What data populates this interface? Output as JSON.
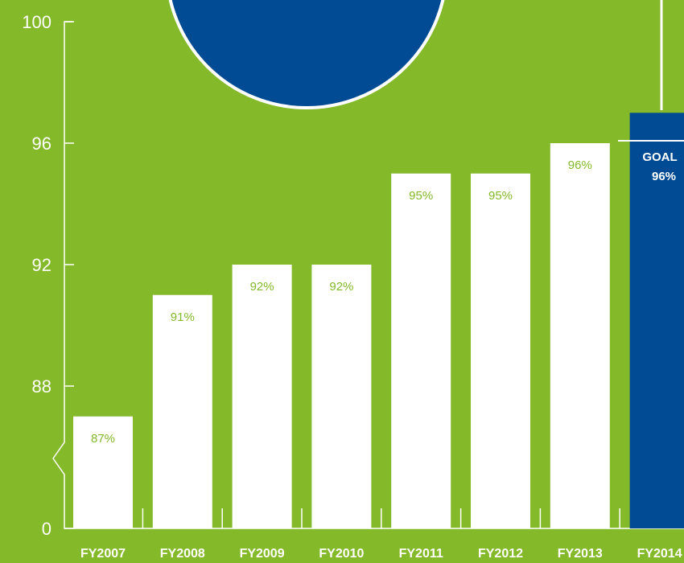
{
  "chart_data": {
    "type": "bar",
    "categories": [
      "FY2007",
      "FY2008",
      "FY2009",
      "FY2010",
      "FY2011",
      "FY2012",
      "FY2013",
      "FY2014"
    ],
    "values": [
      87,
      91,
      92,
      92,
      95,
      95,
      96,
      97
    ],
    "data_labels": [
      "87%",
      "91%",
      "92%",
      "92%",
      "95%",
      "95%",
      "96%",
      ""
    ],
    "y_ticks": [
      "0",
      "88",
      "92",
      "96",
      "100"
    ],
    "ylim": [
      86,
      100
    ],
    "axis_break": true,
    "goal": {
      "value": 96,
      "label_line1": "GOAL",
      "label_line2": "96%"
    },
    "highlight_category": "FY2014",
    "colors": {
      "background": "#84b92a",
      "bar": "#ffffff",
      "highlight_bar": "#004b93",
      "label": "#84b92a",
      "axis": "#ffffff"
    }
  }
}
